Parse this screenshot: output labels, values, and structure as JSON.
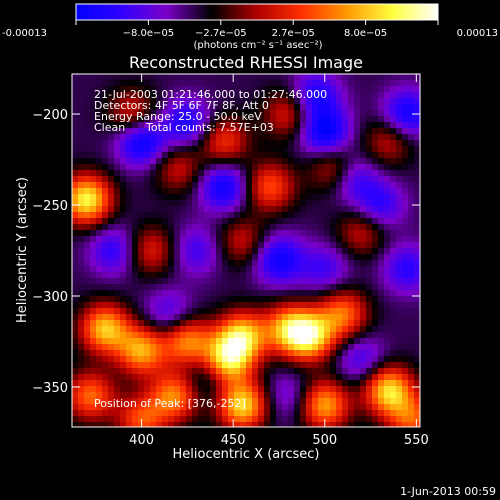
{
  "colorbar": {
    "colors": [
      "#0000ff",
      "#3000ff",
      "#7a00c8",
      "#000000",
      "#b00000",
      "#ff3000",
      "#ff9a00",
      "#ffff40",
      "#ffffff"
    ],
    "labels": [
      "-0.00013",
      "−8.0e−05",
      "−2.7e−05",
      "2.7e−05",
      "8.0e−05",
      "0.00013"
    ],
    "units": "(photons cm⁻² s⁻¹ asec⁻²)"
  },
  "chart_data": {
    "type": "heatmap",
    "title": "Reconstructed RHESSI Image",
    "xlabel": "Heliocentric X (arcsec)",
    "ylabel": "Heliocentric Y (arcsec)",
    "xlim": [
      362,
      552
    ],
    "ylim": [
      -372,
      -178
    ],
    "xticks": [
      400,
      450,
      500,
      550
    ],
    "yticks": [
      -200,
      -250,
      -300,
      -350
    ],
    "zlim": [
      -0.00013,
      0.00013
    ],
    "bright_spots": [
      {
        "x": 370,
        "y": -247,
        "v": 0.00013
      },
      {
        "x": 380,
        "y": -318,
        "v": 0.00011
      },
      {
        "x": 372,
        "y": -355,
        "v": 8e-05
      },
      {
        "x": 400,
        "y": -330,
        "v": 0.0001
      },
      {
        "x": 425,
        "y": -325,
        "v": 9e-05
      },
      {
        "x": 447,
        "y": -335,
        "v": 0.00012
      },
      {
        "x": 455,
        "y": -322,
        "v": 0.00011
      },
      {
        "x": 480,
        "y": -318,
        "v": 9e-05
      },
      {
        "x": 492,
        "y": -322,
        "v": 0.00012
      },
      {
        "x": 510,
        "y": -310,
        "v": 8e-05
      },
      {
        "x": 418,
        "y": -355,
        "v": 9e-05
      },
      {
        "x": 455,
        "y": -360,
        "v": 0.00012
      },
      {
        "x": 500,
        "y": -360,
        "v": 0.0001
      },
      {
        "x": 535,
        "y": -352,
        "v": 0.00012
      },
      {
        "x": 548,
        "y": -368,
        "v": 7e-05
      },
      {
        "x": 400,
        "y": -368,
        "v": 7e-05
      },
      {
        "x": 445,
        "y": -215,
        "v": 6e-05
      },
      {
        "x": 470,
        "y": -240,
        "v": 7e-05
      },
      {
        "x": 480,
        "y": -200,
        "v": 5e-05
      },
      {
        "x": 420,
        "y": -230,
        "v": 4e-05
      },
      {
        "x": 520,
        "y": -265,
        "v": 4e-05
      },
      {
        "x": 405,
        "y": -275,
        "v": 5e-05
      },
      {
        "x": 455,
        "y": -270,
        "v": 4e-05
      },
      {
        "x": 395,
        "y": -200,
        "v": 5e-05
      },
      {
        "x": 535,
        "y": -215,
        "v": 4e-05
      },
      {
        "x": 505,
        "y": -230,
        "v": 5e-05
      }
    ],
    "dark_spots": [
      {
        "x": 400,
        "y": -215,
        "v": -0.0001
      },
      {
        "x": 425,
        "y": -205,
        "v": -8e-05
      },
      {
        "x": 445,
        "y": -240,
        "v": -9e-05
      },
      {
        "x": 495,
        "y": -190,
        "v": -8e-05
      },
      {
        "x": 500,
        "y": -210,
        "v": -0.0001
      },
      {
        "x": 515,
        "y": -235,
        "v": -7e-05
      },
      {
        "x": 545,
        "y": -200,
        "v": -9e-05
      },
      {
        "x": 530,
        "y": -250,
        "v": -7e-05
      },
      {
        "x": 385,
        "y": -275,
        "v": -7e-05
      },
      {
        "x": 430,
        "y": -275,
        "v": -6e-05
      },
      {
        "x": 475,
        "y": -280,
        "v": -9e-05
      },
      {
        "x": 500,
        "y": -285,
        "v": -6e-05
      },
      {
        "x": 545,
        "y": -285,
        "v": -7e-05
      },
      {
        "x": 415,
        "y": -310,
        "v": -6e-05
      },
      {
        "x": 435,
        "y": -345,
        "v": -5e-05
      },
      {
        "x": 520,
        "y": -335,
        "v": -6e-05
      },
      {
        "x": 480,
        "y": -355,
        "v": -5e-05
      }
    ]
  },
  "info": {
    "line1": "21-Jul-2003 01:21:46.000 to 01:27:46.000",
    "line2": "Detectors: 4F 5F 6F 7F 8F, Att 0",
    "line3": "Energy Range: 25.0 - 50.0 keV",
    "line4_a": "Clean",
    "line4_b": "Total counts: 7.57E+03",
    "peak": "Position of Peak: [376,-252]"
  },
  "date_stamp": "1-Jun-2013 00:59"
}
